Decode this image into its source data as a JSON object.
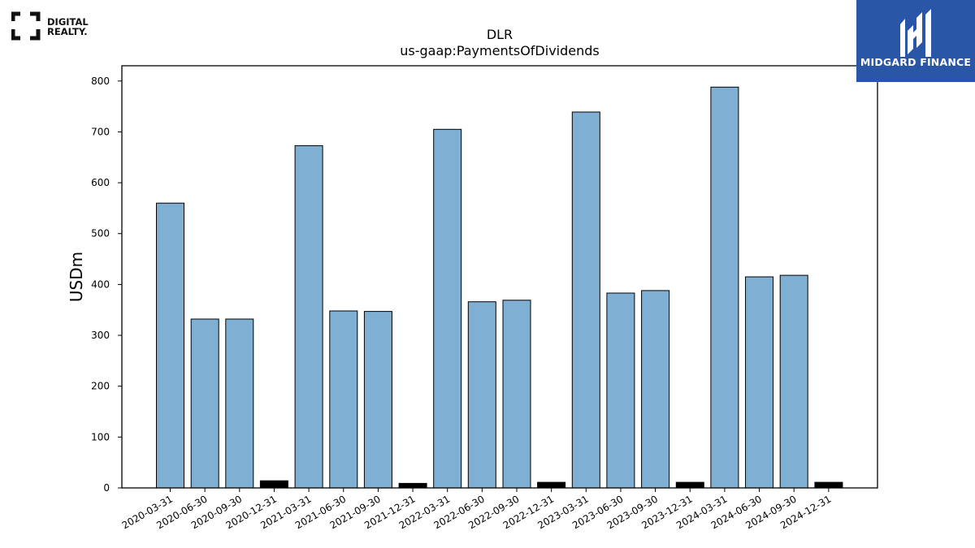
{
  "logos": {
    "left": {
      "line1": "DIGITAL",
      "line2": "REALTY."
    },
    "right": {
      "text": "MIDGARD FINANCE"
    }
  },
  "colors": {
    "bar": "#7fb0d4",
    "negative_bar": "#000000",
    "brand_right": "#2a56a8"
  },
  "chart_data": {
    "type": "bar",
    "title": "DLR",
    "subtitle": "us-gaap:PaymentsOfDividends",
    "xlabel": "",
    "ylabel": "USDm",
    "ylim": [
      0,
      830
    ],
    "yticks": [
      0,
      100,
      200,
      300,
      400,
      500,
      600,
      700,
      800
    ],
    "grid": false,
    "categories": [
      "2020-03-31",
      "2020-06-30",
      "2020-09-30",
      "2020-12-31",
      "2021-03-31",
      "2021-06-30",
      "2021-09-30",
      "2021-12-31",
      "2022-03-31",
      "2022-06-30",
      "2022-09-30",
      "2022-12-31",
      "2023-03-31",
      "2023-06-30",
      "2023-09-30",
      "2023-12-31",
      "2024-03-31",
      "2024-06-30",
      "2024-09-30",
      "2024-12-31"
    ],
    "values": [
      560,
      332,
      332,
      -14,
      673,
      348,
      347,
      -9,
      705,
      366,
      369,
      -11,
      739,
      383,
      388,
      -11,
      788,
      415,
      418,
      -11
    ]
  }
}
